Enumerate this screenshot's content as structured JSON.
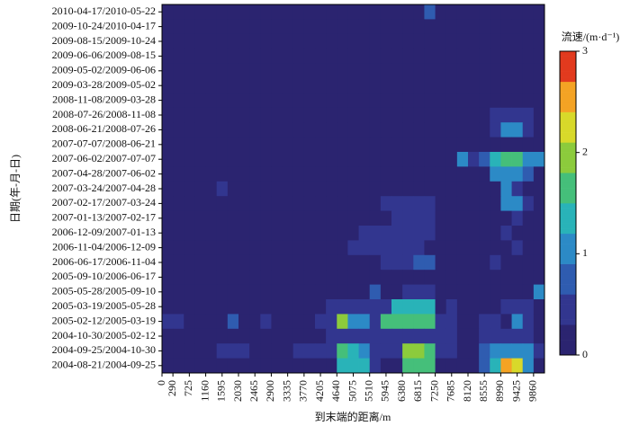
{
  "chart_data": {
    "type": "heatmap",
    "x_label": "到末端的距离/m",
    "y_label": "日期(年-月-日)",
    "colorbar_label": "流速/(m·d⁻¹)",
    "x": [
      0,
      290,
      580,
      870,
      1160,
      1450,
      1740,
      2030,
      2320,
      2610,
      2900,
      3190,
      3480,
      3770,
      4060,
      4350,
      4640,
      4930,
      5220,
      5510,
      5800,
      6090,
      6380,
      6670,
      6960,
      7250,
      7540,
      7830,
      8120,
      8410,
      8700,
      8990,
      9280,
      9570,
      9860
    ],
    "categories": [
      "2010-04-17/2010-05-22",
      "2009-10-24/2010-04-17",
      "2009-08-15/2009-10-24",
      "2009-06-06/2009-08-15",
      "2009-05-02/2009-06-06",
      "2009-03-28/2009-05-02",
      "2008-11-08/2009-03-28",
      "2008-07-26/2008-11-08",
      "2008-06-21/2008-07-26",
      "2007-07-07/2008-06-21",
      "2007-06-02/2007-07-07",
      "2007-04-28/2007-06-02",
      "2007-03-24/2007-04-28",
      "2007-02-17/2007-03-24",
      "2007-01-13/2007-02-17",
      "2006-12-09/2007-01-13",
      "2006-11-04/2006-12-09",
      "2006-06-17/2006-11-04",
      "2005-09-10/2006-06-17",
      "2005-05-28/2005-09-10",
      "2005-03-19/2005-05-28",
      "2005-02-12/2005-03-19",
      "2004-10-30/2005-02-12",
      "2004-09-25/2004-10-30",
      "2004-08-21/2004-09-25"
    ],
    "z": [
      [
        0.2,
        0.2,
        0.2,
        0.2,
        0.2,
        0.2,
        0.2,
        0.2,
        0.2,
        0.2,
        0.2,
        0.2,
        0.2,
        0.2,
        0.2,
        0.2,
        0.2,
        0.3,
        0.3,
        0.2,
        0.2,
        0.2,
        0.2,
        0.2,
        0.8,
        0.2,
        0.2,
        0.2,
        0.2,
        0.2,
        0.2,
        0.2,
        0.2,
        0.2,
        0.2
      ],
      [
        0.2,
        0.2,
        0.2,
        0.2,
        0.2,
        0.2,
        0.2,
        0.2,
        0.2,
        0.2,
        0.2,
        0.2,
        0.2,
        0.2,
        0.2,
        0.2,
        0.2,
        0.2,
        0.2,
        0.2,
        0.2,
        0.2,
        0.2,
        0.2,
        0.2,
        0.2,
        0.2,
        0.2,
        0.2,
        0.2,
        0.2,
        0.3,
        0.3,
        0.3,
        0.2
      ],
      [
        0.2,
        0.2,
        0.2,
        0.2,
        0.2,
        0.2,
        0.2,
        0.2,
        0.2,
        0.2,
        0.2,
        0.2,
        0.2,
        0.2,
        0.2,
        0.2,
        0.2,
        0.2,
        0.2,
        0.2,
        0.2,
        0.2,
        0.2,
        0.2,
        0.2,
        0.2,
        0.2,
        0.2,
        0.2,
        0.2,
        0.2,
        0.3,
        0.3,
        0.2,
        0.2
      ],
      [
        0.2,
        0.2,
        0.2,
        0.2,
        0.2,
        0.2,
        0.2,
        0.2,
        0.2,
        0.2,
        0.2,
        0.2,
        0.2,
        0.2,
        0.2,
        0.2,
        0.2,
        0.2,
        0.2,
        0.2,
        0.2,
        0.2,
        0.2,
        0.2,
        0.2,
        0.2,
        0.2,
        0.2,
        0.2,
        0.2,
        0.2,
        0.3,
        0.3,
        0.3,
        0.2
      ],
      [
        0.2,
        0.2,
        0.2,
        0.2,
        0.2,
        0.2,
        0.2,
        0.2,
        0.2,
        0.2,
        0.2,
        0.2,
        0.2,
        0.2,
        0.2,
        0.2,
        0.2,
        0.2,
        0.2,
        0.2,
        0.2,
        0.2,
        0.2,
        0.2,
        0.2,
        0.2,
        0.2,
        0.2,
        0.2,
        0.2,
        0.2,
        0.2,
        0.2,
        0.2,
        0.2
      ],
      [
        0.2,
        0.2,
        0.2,
        0.2,
        0.2,
        0.2,
        0.2,
        0.2,
        0.2,
        0.2,
        0.2,
        0.2,
        0.2,
        0.2,
        0.2,
        0.2,
        0.2,
        0.2,
        0.2,
        0.2,
        0.2,
        0.2,
        0.2,
        0.2,
        0.2,
        0.2,
        0.2,
        0.2,
        0.2,
        0.2,
        0.3,
        0.3,
        0.2,
        0.2,
        0.2
      ],
      [
        0.2,
        0.2,
        0.2,
        0.2,
        0.2,
        0.2,
        0.2,
        0.2,
        0.2,
        0.2,
        0.2,
        0.2,
        0.2,
        0.2,
        0.2,
        0.2,
        0.2,
        0.2,
        0.2,
        0.2,
        0.2,
        0.2,
        0.2,
        0.3,
        0.3,
        0.3,
        0.2,
        0.2,
        0.2,
        0.2,
        0.2,
        0.2,
        0.2,
        0.2,
        0.2
      ],
      [
        0.2,
        0.2,
        0.2,
        0.2,
        0.2,
        0.2,
        0.2,
        0.2,
        0.2,
        0.2,
        0.2,
        0.2,
        0.2,
        0.2,
        0.2,
        0.2,
        0.3,
        0.3,
        0.3,
        0.3,
        0.3,
        0.3,
        0.3,
        0.3,
        0.3,
        0.3,
        0.3,
        0.2,
        0.2,
        0.2,
        0.5,
        0.5,
        0.5,
        0.5,
        0.2
      ],
      [
        0.2,
        0.2,
        0.2,
        0.2,
        0.2,
        0.2,
        0.2,
        0.2,
        0.2,
        0.2,
        0.2,
        0.2,
        0.2,
        0.2,
        0.2,
        0.2,
        0.2,
        0.3,
        0.3,
        0.3,
        0.3,
        0.3,
        0.3,
        0.3,
        0.3,
        0.3,
        0.3,
        0.3,
        0.2,
        0.2,
        0.5,
        0.9,
        1.1,
        0.6,
        0.2
      ],
      [
        0.2,
        0.2,
        0.2,
        0.2,
        0.2,
        0.2,
        0.2,
        0.2,
        0.2,
        0.2,
        0.2,
        0.2,
        0.2,
        0.2,
        0.2,
        0.2,
        0.2,
        0.2,
        0.2,
        0.2,
        0.2,
        0.2,
        0.2,
        0.2,
        0.2,
        0.2,
        0.2,
        0.2,
        0.2,
        0.3,
        0.3,
        0.3,
        0.3,
        0.3,
        0.2
      ],
      [
        0.2,
        0.2,
        0.2,
        0.2,
        0.2,
        0.2,
        0.2,
        0.2,
        0.2,
        0.2,
        0.2,
        0.2,
        0.2,
        0.2,
        0.2,
        0.2,
        0.3,
        0.3,
        0.3,
        0.3,
        0.3,
        0.3,
        0.3,
        0.3,
        0.3,
        0.3,
        0.2,
        1.0,
        0.5,
        0.8,
        1.3,
        1.6,
        1.7,
        1.2,
        1.0
      ],
      [
        0.2,
        0.2,
        0.2,
        0.2,
        0.2,
        0.2,
        0.2,
        0.2,
        0.2,
        0.2,
        0.2,
        0.2,
        0.2,
        0.2,
        0.2,
        0.2,
        0.3,
        0.3,
        0.3,
        0.3,
        0.3,
        0.3,
        0.3,
        0.3,
        0.3,
        0.3,
        0.3,
        0.2,
        0.2,
        0.2,
        1.1,
        0.9,
        1.2,
        0.7,
        0.2
      ],
      [
        0.2,
        0.2,
        0.2,
        0.2,
        0.2,
        0.4,
        0.2,
        0.2,
        0.2,
        0.2,
        0.2,
        0.2,
        0.2,
        0.2,
        0.2,
        0.3,
        0.3,
        0.3,
        0.3,
        0.3,
        0.3,
        0.3,
        0.3,
        0.3,
        0.3,
        0.3,
        0.2,
        0.2,
        0.2,
        0.2,
        0.2,
        0.9,
        0.6,
        0.2,
        0.2
      ],
      [
        0.2,
        0.2,
        0.2,
        0.2,
        0.2,
        0.2,
        0.2,
        0.2,
        0.2,
        0.2,
        0.2,
        0.2,
        0.2,
        0.2,
        0.2,
        0.2,
        0.2,
        0.2,
        0.2,
        0.2,
        0.4,
        0.4,
        0.4,
        0.4,
        0.4,
        0.2,
        0.2,
        0.2,
        0.2,
        0.2,
        0.2,
        1.0,
        1.2,
        0.6,
        0.2
      ],
      [
        0.2,
        0.2,
        0.2,
        0.2,
        0.2,
        0.2,
        0.2,
        0.2,
        0.2,
        0.2,
        0.2,
        0.2,
        0.2,
        0.2,
        0.2,
        0.2,
        0.2,
        0.2,
        0.2,
        0.2,
        0.2,
        0.5,
        0.5,
        0.5,
        0.5,
        0.2,
        0.2,
        0.2,
        0.2,
        0.2,
        0.2,
        0.2,
        0.6,
        0.2,
        0.2
      ],
      [
        0.2,
        0.2,
        0.2,
        0.2,
        0.2,
        0.2,
        0.2,
        0.2,
        0.2,
        0.2,
        0.2,
        0.2,
        0.2,
        0.2,
        0.2,
        0.2,
        0.2,
        0.2,
        0.4,
        0.4,
        0.4,
        0.4,
        0.4,
        0.4,
        0.6,
        0.2,
        0.2,
        0.2,
        0.2,
        0.2,
        0.2,
        0.4,
        0.2,
        0.2,
        0.2
      ],
      [
        0.2,
        0.2,
        0.2,
        0.2,
        0.2,
        0.2,
        0.2,
        0.2,
        0.2,
        0.2,
        0.2,
        0.2,
        0.2,
        0.2,
        0.2,
        0.2,
        0.2,
        0.4,
        0.4,
        0.4,
        0.4,
        0.4,
        0.4,
        0.6,
        0.2,
        0.2,
        0.2,
        0.2,
        0.2,
        0.2,
        0.2,
        0.2,
        0.5,
        0.2,
        0.2
      ],
      [
        0.2,
        0.2,
        0.2,
        0.2,
        0.2,
        0.2,
        0.2,
        0.2,
        0.2,
        0.2,
        0.2,
        0.2,
        0.2,
        0.2,
        0.2,
        0.2,
        0.2,
        0.2,
        0.2,
        0.2,
        0.4,
        0.4,
        0.4,
        0.8,
        0.8,
        0.2,
        0.2,
        0.2,
        0.2,
        0.2,
        0.5,
        0.2,
        0.2,
        0.2,
        0.2
      ],
      [
        0.2,
        0.2,
        0.2,
        0.2,
        0.2,
        0.2,
        0.2,
        0.2,
        0.2,
        0.2,
        0.2,
        0.2,
        0.2,
        0.2,
        0.2,
        0.2,
        0.3,
        0.3,
        0.3,
        0.3,
        0.3,
        0.3,
        0.3,
        0.3,
        0.3,
        0.3,
        0.3,
        0.2,
        0.2,
        0.2,
        0.2,
        0.2,
        0.2,
        0.2,
        0.2
      ],
      [
        0.2,
        0.2,
        0.2,
        0.2,
        0.2,
        0.2,
        0.2,
        0.2,
        0.2,
        0.2,
        0.2,
        0.2,
        0.2,
        0.2,
        0.2,
        0.2,
        0.2,
        0.2,
        0.2,
        0.7,
        0.2,
        0.2,
        0.5,
        0.5,
        0.5,
        0.2,
        0.2,
        0.2,
        0.2,
        0.2,
        0.2,
        0.2,
        0.2,
        0.2,
        0.9
      ],
      [
        0.2,
        0.2,
        0.2,
        0.2,
        0.2,
        0.2,
        0.2,
        0.2,
        0.2,
        0.2,
        0.2,
        0.2,
        0.2,
        0.2,
        0.2,
        0.4,
        0.4,
        0.4,
        0.4,
        0.4,
        0.4,
        1.3,
        1.3,
        1.3,
        1.3,
        0.2,
        0.5,
        0.2,
        0.2,
        0.2,
        0.2,
        0.5,
        0.5,
        0.5,
        0.2
      ],
      [
        0.4,
        0.4,
        0.2,
        0.2,
        0.2,
        0.2,
        0.7,
        0.2,
        0.2,
        0.4,
        0.2,
        0.2,
        0.2,
        0.2,
        0.4,
        0.4,
        1.8,
        1.1,
        1.1,
        0.5,
        1.7,
        1.7,
        1.7,
        1.7,
        1.7,
        0.6,
        0.6,
        0.2,
        0.2,
        0.4,
        0.4,
        0.2,
        1.0,
        0.5,
        0.2
      ],
      [
        0.2,
        0.2,
        0.2,
        0.2,
        0.2,
        0.2,
        0.2,
        0.2,
        0.2,
        0.2,
        0.2,
        0.2,
        0.2,
        0.2,
        0.2,
        0.4,
        0.4,
        0.4,
        0.4,
        0.4,
        0.4,
        0.4,
        0.4,
        0.4,
        0.4,
        0.4,
        0.4,
        0.2,
        0.2,
        0.5,
        0.5,
        0.5,
        0.5,
        0.5,
        0.2
      ],
      [
        0.2,
        0.2,
        0.2,
        0.2,
        0.2,
        0.4,
        0.4,
        0.4,
        0.2,
        0.2,
        0.2,
        0.2,
        0.4,
        0.4,
        0.4,
        0.4,
        1.6,
        1.3,
        1.0,
        0.5,
        0.5,
        0.5,
        2.0,
        1.8,
        1.5,
        0.6,
        0.6,
        0.2,
        0.2,
        0.8,
        1.0,
        1.0,
        1.0,
        1.0,
        0.5
      ],
      [
        0.2,
        0.2,
        0.2,
        0.2,
        0.2,
        0.2,
        0.2,
        0.2,
        0.2,
        0.2,
        0.2,
        0.2,
        0.2,
        0.2,
        0.2,
        0.2,
        1.3,
        1.3,
        1.3,
        0.5,
        0.2,
        0.2,
        1.6,
        1.6,
        1.6,
        0.2,
        0.2,
        0.2,
        0.2,
        0.8,
        1.4,
        2.6,
        2.4,
        1.0,
        0.2
      ]
    ],
    "xlim": [
      0,
      10150
    ],
    "xticks": [
      0,
      290,
      725,
      1160,
      1595,
      2030,
      2465,
      2900,
      3335,
      3770,
      4205,
      4640,
      5075,
      5510,
      5945,
      6380,
      6815,
      7250,
      7685,
      8120,
      8555,
      8990,
      9425,
      9860
    ],
    "zlim": [
      0,
      3
    ],
    "zticks": [
      0,
      1,
      2,
      3
    ],
    "colormap": [
      "#2b2470",
      "#32368f",
      "#2f5cb0",
      "#2c8ac6",
      "#29b3b8",
      "#45bf7a",
      "#8ccb3c",
      "#d8d92a",
      "#f4a324",
      "#e23a1e"
    ]
  }
}
